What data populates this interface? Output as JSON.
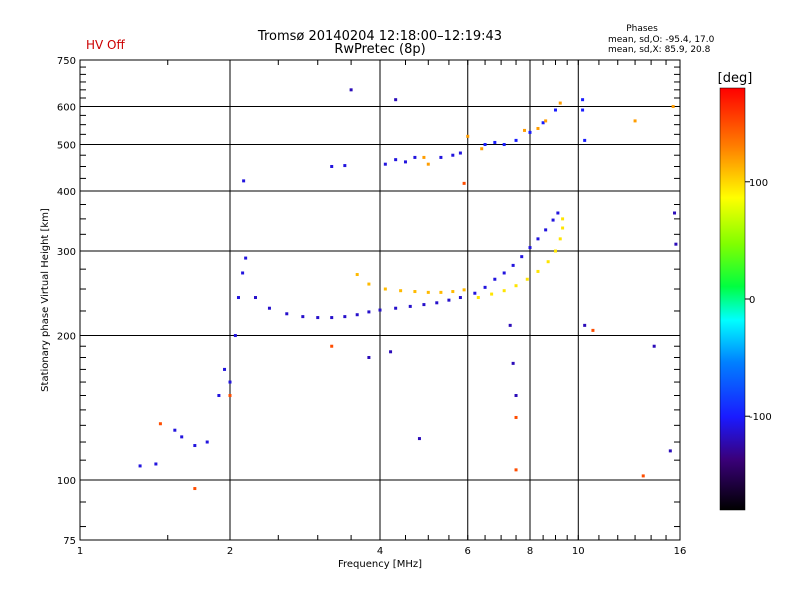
{
  "chart_data": {
    "type": "scatter",
    "title_line1": "Tromsø 20140204 12:18:00–12:19:43",
    "title_line2": "RwPretec (8p)",
    "status": "HV Off",
    "status_color": "#cc0000",
    "phases_title": "Phases",
    "phases_line1": "mean, sd,O: -95.4, 17.0",
    "phases_line2": "mean, sd,X:  85.9, 20.8",
    "xlabel": "Frequency [MHz]",
    "ylabel": "Stationary phase Virtual Height [km]",
    "x_scale": "log",
    "y_scale": "log",
    "xlim": [
      1,
      16
    ],
    "ylim": [
      75,
      750
    ],
    "x_major_ticks": [
      1,
      2,
      4,
      6,
      8,
      10,
      16
    ],
    "x_tick_labels": [
      "1",
      "2",
      "4",
      "6",
      "8",
      "10",
      "16"
    ],
    "x_grid_lines": [
      2,
      4,
      6,
      8,
      10
    ],
    "y_major_ticks": [
      75,
      100,
      200,
      300,
      400,
      500,
      600,
      750
    ],
    "y_tick_labels": [
      "75",
      "100",
      "200",
      "300",
      "400",
      "500",
      "600",
      "750"
    ],
    "y_grid_lines": [
      100,
      200,
      300,
      400,
      500,
      600
    ],
    "grid": true,
    "colorbar": {
      "label": "[deg]",
      "range": [
        -180,
        180
      ],
      "ticks": [
        100,
        0,
        -100
      ],
      "tick_labels": [
        "100",
        "0",
        "-100"
      ],
      "colormap": "rainbow",
      "placement": "right"
    },
    "traces": [
      {
        "name_hidden": true,
        "phase": -110,
        "points": [
          [
            1.32,
            107
          ],
          [
            1.42,
            108
          ],
          [
            1.55,
            127
          ],
          [
            1.6,
            123
          ],
          [
            1.7,
            118
          ],
          [
            1.8,
            120
          ],
          [
            1.9,
            150
          ],
          [
            1.95,
            170
          ],
          [
            2.0,
            160
          ],
          [
            2.05,
            200
          ],
          [
            2.08,
            240
          ],
          [
            2.12,
            270
          ],
          [
            2.15,
            290
          ],
          [
            2.13,
            420
          ]
        ]
      },
      {
        "phase": -115,
        "points": [
          [
            2.25,
            240
          ],
          [
            2.4,
            228
          ],
          [
            2.6,
            222
          ],
          [
            2.8,
            219
          ],
          [
            3.0,
            218
          ],
          [
            3.2,
            218
          ],
          [
            3.4,
            219
          ],
          [
            3.6,
            221
          ],
          [
            3.8,
            224
          ],
          [
            4.0,
            226
          ],
          [
            4.3,
            228
          ],
          [
            4.6,
            230
          ],
          [
            4.9,
            232
          ],
          [
            5.2,
            234
          ],
          [
            5.5,
            237
          ],
          [
            5.8,
            240
          ]
        ]
      },
      {
        "phase": 110,
        "points": [
          [
            3.6,
            268
          ],
          [
            3.8,
            256
          ],
          [
            4.1,
            250
          ],
          [
            4.4,
            248
          ],
          [
            4.7,
            247
          ],
          [
            5.0,
            246
          ],
          [
            5.3,
            246
          ],
          [
            5.6,
            247
          ],
          [
            5.9,
            249
          ]
        ]
      },
      {
        "phase": -110,
        "points": [
          [
            6.2,
            245
          ],
          [
            6.5,
            252
          ],
          [
            6.8,
            262
          ],
          [
            7.1,
            270
          ],
          [
            7.4,
            280
          ],
          [
            7.7,
            292
          ],
          [
            8.0,
            305
          ],
          [
            8.3,
            318
          ],
          [
            8.6,
            332
          ],
          [
            8.9,
            348
          ],
          [
            9.1,
            360
          ]
        ]
      },
      {
        "phase": 95,
        "points": [
          [
            6.3,
            240
          ],
          [
            6.7,
            244
          ],
          [
            7.1,
            248
          ],
          [
            7.5,
            254
          ],
          [
            7.9,
            262
          ],
          [
            8.3,
            272
          ],
          [
            8.7,
            285
          ],
          [
            9.0,
            300
          ],
          [
            9.2,
            318
          ],
          [
            9.3,
            335
          ],
          [
            9.3,
            350
          ]
        ]
      },
      {
        "phase": -110,
        "points": [
          [
            3.2,
            450
          ],
          [
            3.4,
            452
          ],
          [
            4.1,
            455
          ],
          [
            4.3,
            465
          ],
          [
            4.5,
            460
          ],
          [
            4.7,
            470
          ],
          [
            5.3,
            470
          ],
          [
            5.6,
            475
          ],
          [
            5.8,
            480
          ]
        ]
      },
      {
        "phase": -100,
        "points": [
          [
            6.5,
            500
          ],
          [
            6.8,
            505
          ],
          [
            7.1,
            500
          ],
          [
            7.5,
            510
          ],
          [
            8.0,
            530
          ],
          [
            8.5,
            555
          ],
          [
            9.0,
            590
          ],
          [
            10.2,
            620
          ],
          [
            10.3,
            510
          ],
          [
            10.2,
            590
          ]
        ]
      },
      {
        "phase": 120,
        "points": [
          [
            4.9,
            470
          ],
          [
            5.0,
            455
          ],
          [
            6.0,
            520
          ],
          [
            6.4,
            490
          ],
          [
            7.8,
            535
          ],
          [
            8.3,
            540
          ],
          [
            8.6,
            560
          ],
          [
            9.2,
            610
          ],
          [
            13.0,
            560
          ],
          [
            15.5,
            600
          ]
        ]
      },
      {
        "phase": -120,
        "points": [
          [
            3.5,
            650
          ],
          [
            4.3,
            620
          ],
          [
            7.3,
            210
          ],
          [
            7.4,
            175
          ],
          [
            7.5,
            150
          ],
          [
            10.3,
            210
          ],
          [
            14.2,
            190
          ],
          [
            15.3,
            115
          ],
          [
            15.7,
            310
          ],
          [
            15.6,
            360
          ],
          [
            4.8,
            122
          ],
          [
            4.2,
            185
          ],
          [
            3.8,
            180
          ]
        ]
      },
      {
        "phase": 150,
        "points": [
          [
            1.7,
            96
          ],
          [
            1.45,
            131
          ],
          [
            2.0,
            150
          ],
          [
            3.2,
            190
          ],
          [
            7.5,
            105
          ],
          [
            10.7,
            205
          ],
          [
            13.5,
            102
          ],
          [
            5.9,
            415
          ],
          [
            7.5,
            135
          ]
        ]
      }
    ]
  }
}
